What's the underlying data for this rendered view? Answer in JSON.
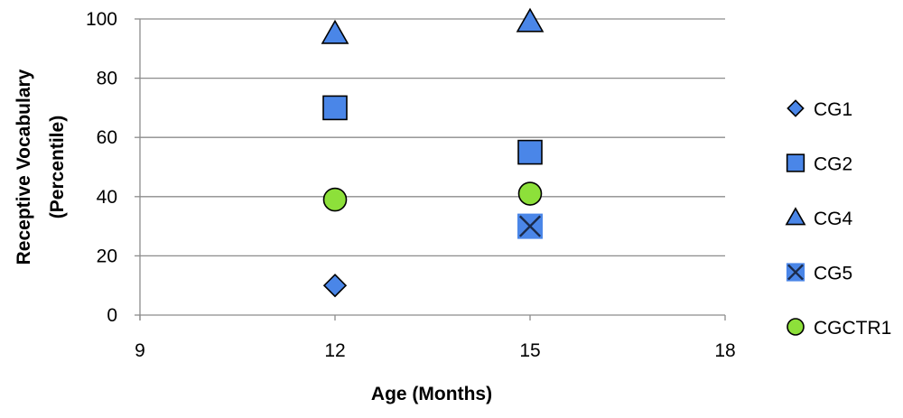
{
  "chart_data": {
    "type": "scatter",
    "xlabel": "Age (Months)",
    "ylabel_lines": [
      "Receptive Vocabulary",
      "(Percentile)"
    ],
    "xlim": [
      9,
      18
    ],
    "ylim": [
      0,
      100
    ],
    "xticks": [
      9,
      12,
      15,
      18
    ],
    "yticks": [
      0,
      20,
      40,
      60,
      80,
      100
    ],
    "grid": "horizontal",
    "legend_position": "right",
    "series": [
      {
        "name": "CG1",
        "marker": "diamond",
        "color": "#4a86e8",
        "points": [
          {
            "x": 12,
            "y": 10
          }
        ]
      },
      {
        "name": "CG2",
        "marker": "square",
        "color": "#4a86e8",
        "points": [
          {
            "x": 12,
            "y": 70
          },
          {
            "x": 15,
            "y": 55
          }
        ]
      },
      {
        "name": "CG4",
        "marker": "triangle",
        "color": "#4a86e8",
        "points": [
          {
            "x": 12,
            "y": 95
          },
          {
            "x": 15,
            "y": 99
          }
        ]
      },
      {
        "name": "CG5",
        "marker": "x-square",
        "color": "#4a86e8",
        "points": [
          {
            "x": 15,
            "y": 30
          }
        ]
      },
      {
        "name": "CGCTR1",
        "marker": "circle",
        "color": "#8de03a",
        "points": [
          {
            "x": 12,
            "y": 39
          },
          {
            "x": 15,
            "y": 41
          }
        ]
      }
    ]
  }
}
